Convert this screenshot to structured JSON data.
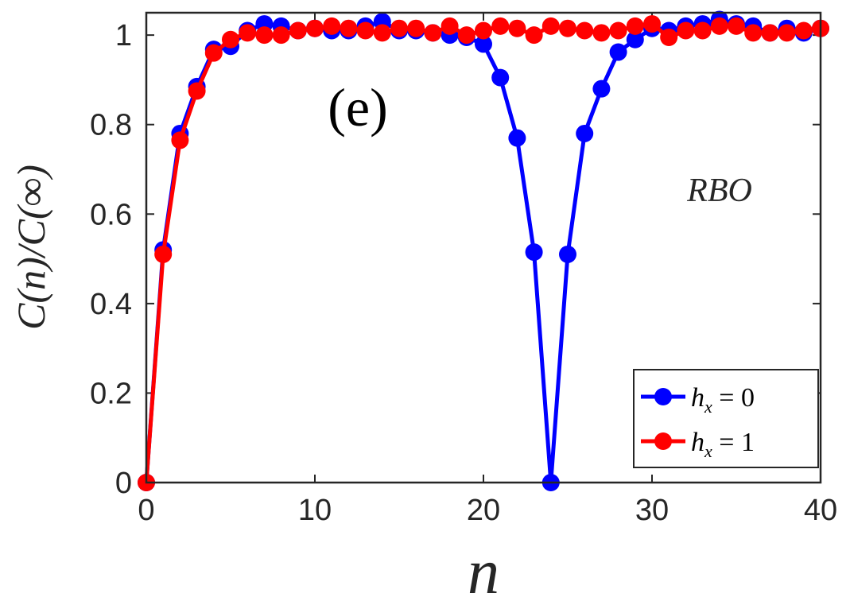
{
  "chart_data": {
    "type": "line",
    "title": "",
    "panel_label": "(e)",
    "annotation": "RBO",
    "xlabel": "n",
    "ylabel": "C(n)/C(∞)",
    "xlim": [
      0,
      40
    ],
    "ylim": [
      0,
      1.05
    ],
    "xticks": [
      0,
      10,
      20,
      30,
      40
    ],
    "xtick_labels": [
      "0",
      "10",
      "20",
      "30",
      "40"
    ],
    "yticks": [
      0,
      0.2,
      0.4,
      0.6,
      0.8,
      1
    ],
    "ytick_labels": [
      "0",
      "0.2",
      "0.4",
      "0.6",
      "0.8",
      "1"
    ],
    "grid": false,
    "legend_position": "bottom-right",
    "x": [
      0,
      1,
      2,
      3,
      4,
      5,
      6,
      7,
      8,
      9,
      10,
      11,
      12,
      13,
      14,
      15,
      16,
      17,
      18,
      19,
      20,
      21,
      22,
      23,
      24,
      25,
      26,
      27,
      28,
      29,
      30,
      31,
      32,
      33,
      34,
      35,
      36,
      37,
      38,
      39,
      40
    ],
    "series": [
      {
        "name": "h_x = 0",
        "legend_label": "h",
        "legend_sub": "x",
        "legend_rest": " = 0",
        "color": "#0000ff",
        "values": [
          0,
          0.52,
          0.78,
          0.885,
          0.968,
          0.975,
          1.01,
          1.025,
          1.02,
          1.01,
          1.015,
          1.01,
          1.01,
          1.02,
          1.03,
          1.01,
          1.01,
          1.005,
          1.0,
          0.995,
          0.98,
          0.905,
          0.77,
          0.515,
          0.0,
          0.51,
          0.78,
          0.88,
          0.962,
          0.99,
          1.015,
          1.01,
          1.02,
          1.025,
          1.035,
          1.025,
          1.02,
          1.005,
          1.015,
          1.005,
          1.015
        ]
      },
      {
        "name": "h_x = 1",
        "legend_label": "h",
        "legend_sub": "x",
        "legend_rest": " = 1",
        "color": "#ff0000",
        "values": [
          0,
          0.51,
          0.765,
          0.875,
          0.96,
          0.99,
          1.005,
          1.0,
          1.0,
          1.01,
          1.015,
          1.02,
          1.015,
          1.01,
          1.005,
          1.015,
          1.015,
          1.005,
          1.02,
          1.0,
          1.01,
          1.02,
          1.015,
          1.0,
          1.02,
          1.015,
          1.01,
          1.005,
          1.01,
          1.02,
          1.025,
          0.995,
          1.01,
          1.01,
          1.02,
          1.02,
          1.005,
          1.005,
          1.005,
          1.01,
          1.015
        ]
      }
    ]
  }
}
